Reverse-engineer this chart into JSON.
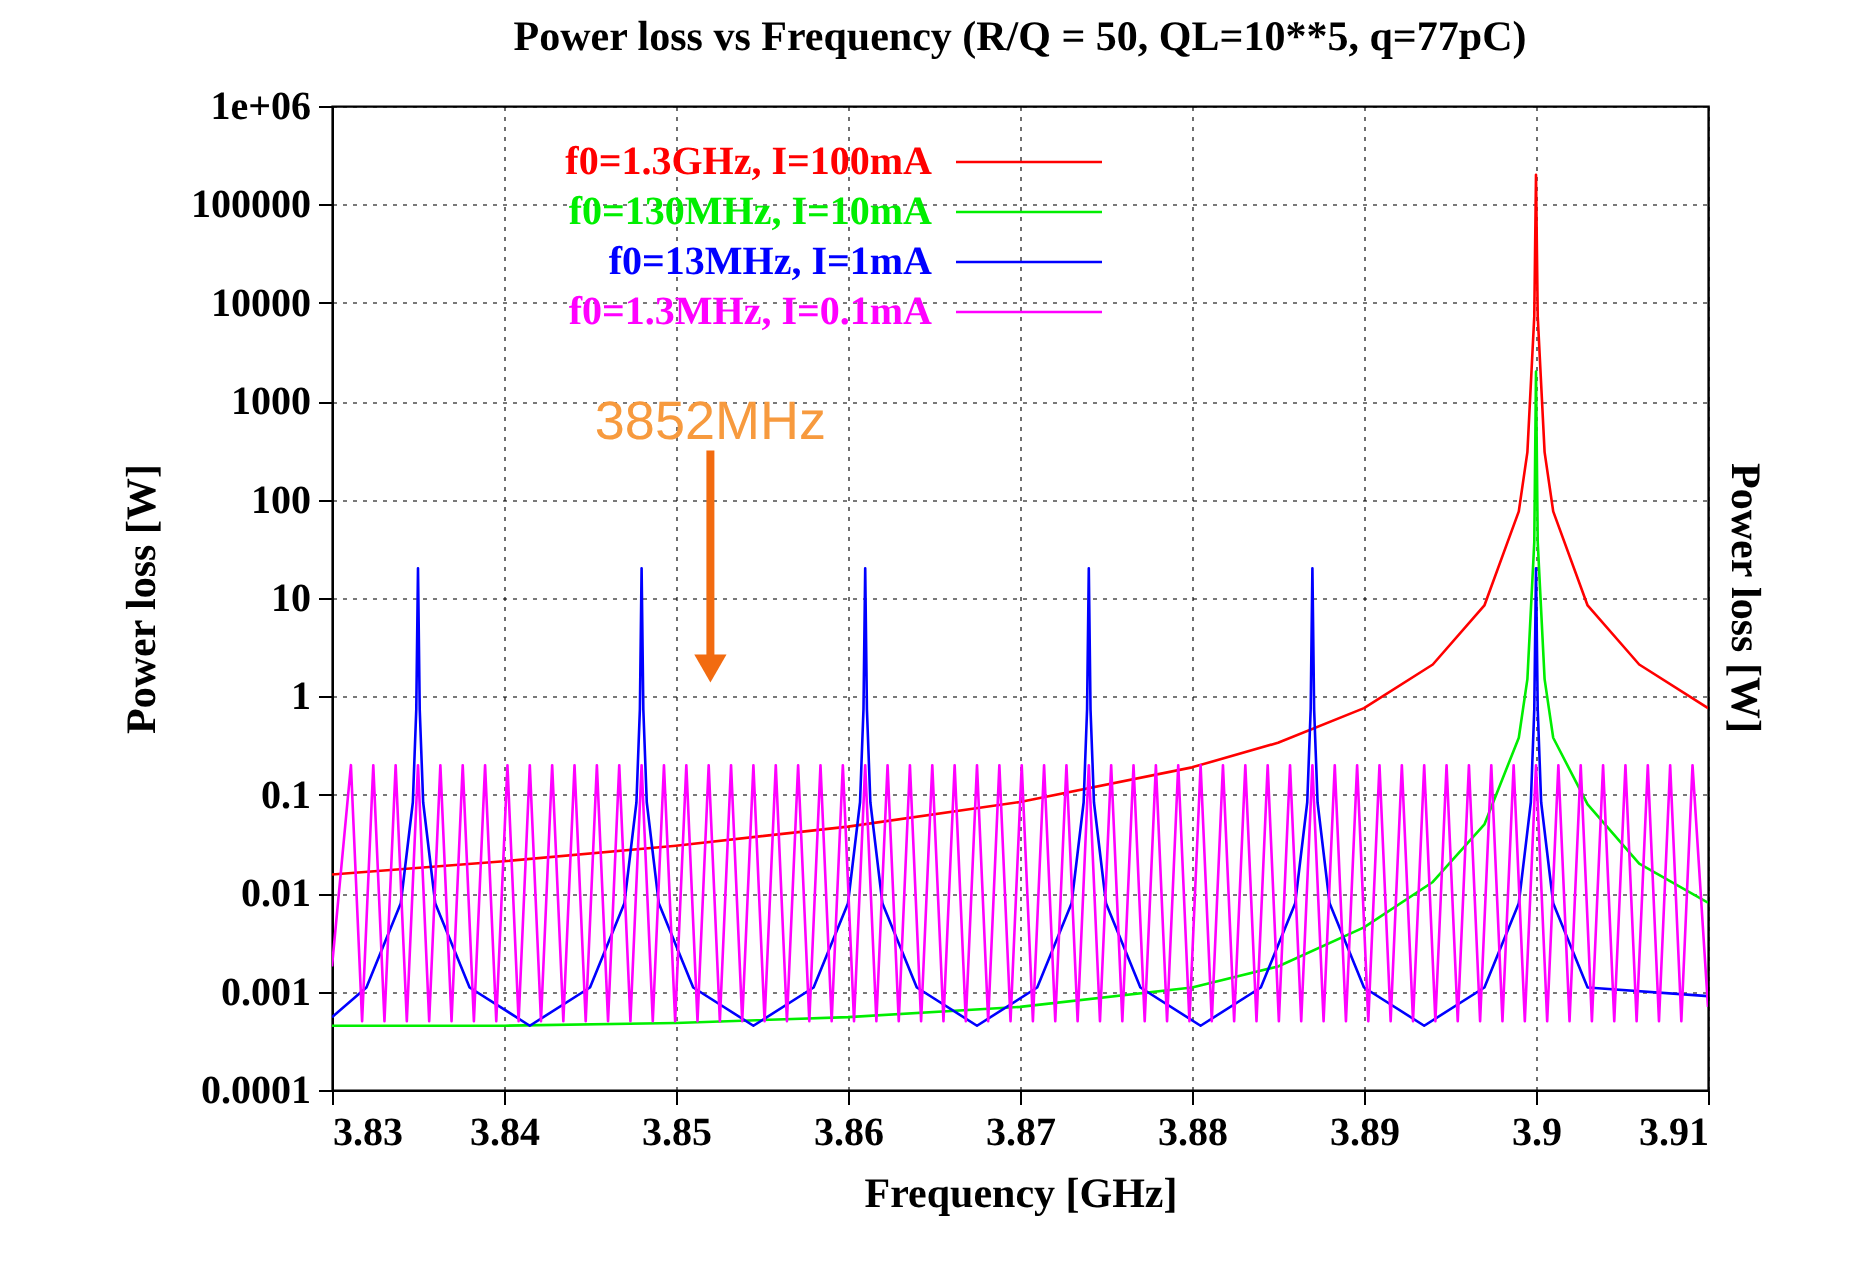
{
  "chart_data": {
    "type": "line",
    "title": "Power loss vs Frequency (R/Q = 50, QL=10**5, q=77pC)",
    "xlabel": "Frequency [GHz]",
    "ylabel": "Power loss [W]",
    "y2label": "Power loss [W]",
    "log": "y",
    "grid": true,
    "legend": "top left",
    "line_style": "solid",
    "marker": "none",
    "xlim": [
      3.83,
      3.91
    ],
    "xticks": [
      3.83,
      3.84,
      3.85,
      3.86,
      3.87,
      3.88,
      3.89,
      3.9,
      3.91
    ],
    "ylim": [
      0.0001,
      1000000
    ],
    "yticks": [
      0.0001,
      0.001,
      0.01,
      0.1,
      1,
      10,
      100,
      1000,
      10000,
      100000,
      {
        "value": 1000000,
        "label": "1e+06"
      }
    ],
    "annotations": [
      "3852MHz"
    ],
    "series": [
      {
        "name": "f0=1.3GHz, I=100mA",
        "color": "#ff0000",
        "x": [
          3.83,
          3.84,
          3.85,
          3.86,
          3.87,
          3.88,
          3.885,
          3.89,
          3.894,
          3.897,
          3.899,
          3.8995,
          3.8999,
          3.9,
          3.9001,
          3.9005,
          3.901,
          3.903,
          3.906,
          3.91
        ],
        "values": [
          0.0155,
          0.0211,
          0.0304,
          0.0475,
          0.0845,
          0.19,
          0.338,
          0.76,
          2.11,
          8.4,
          76,
          304,
          7300,
          200000,
          7300,
          304,
          76,
          8.4,
          2.11,
          0.76
        ]
      },
      {
        "name": "f0=130MHz, I=10mA",
        "color": "#00ee00",
        "x": [
          3.83,
          3.84,
          3.85,
          3.86,
          3.87,
          3.88,
          3.885,
          3.89,
          3.894,
          3.897,
          3.899,
          3.8995,
          3.8999,
          3.9,
          3.9001,
          3.9005,
          3.901,
          3.903,
          3.906,
          3.91
        ],
        "values": [
          0.00045,
          0.00045,
          0.00048,
          0.00055,
          0.0007,
          0.0011,
          0.0018,
          0.0045,
          0.013,
          0.05,
          0.38,
          1.5,
          37,
          2000,
          37,
          1.5,
          0.38,
          0.08,
          0.02,
          0.008
        ]
      },
      {
        "name": "f0=13MHz, I=1mA",
        "color": "#0000ff",
        "x": [
          3.83,
          3.832,
          3.834,
          3.8347,
          3.8349,
          3.835,
          3.8351,
          3.8353,
          3.836,
          3.838,
          3.8415,
          3.845,
          3.847,
          3.8477,
          3.8479,
          3.848,
          3.8481,
          3.8483,
          3.849,
          3.851,
          3.8545,
          3.858,
          3.86,
          3.8607,
          3.8609,
          3.861,
          3.8611,
          3.8613,
          3.862,
          3.864,
          3.8675,
          3.871,
          3.873,
          3.8737,
          3.8739,
          3.874,
          3.8741,
          3.8743,
          3.875,
          3.877,
          3.8805,
          3.884,
          3.886,
          3.8867,
          3.8869,
          3.887,
          3.8871,
          3.8873,
          3.888,
          3.89,
          3.8935,
          3.897,
          3.899,
          3.8997,
          3.8999,
          3.9,
          3.9001,
          3.9003,
          3.901,
          3.903,
          3.91
        ],
        "values": [
          0.00055,
          0.0011,
          0.0079,
          0.084,
          0.74,
          20,
          0.74,
          0.084,
          0.0079,
          0.0011,
          0.00045,
          0.0011,
          0.0079,
          0.084,
          0.74,
          20,
          0.74,
          0.084,
          0.0079,
          0.0011,
          0.00045,
          0.0011,
          0.0079,
          0.084,
          0.74,
          20,
          0.74,
          0.084,
          0.0079,
          0.0011,
          0.00045,
          0.0011,
          0.0079,
          0.084,
          0.74,
          20,
          0.74,
          0.084,
          0.0079,
          0.0011,
          0.00045,
          0.0011,
          0.0079,
          0.084,
          0.74,
          20,
          0.74,
          0.084,
          0.0079,
          0.0011,
          0.00045,
          0.0011,
          0.0079,
          0.084,
          0.74,
          20,
          0.74,
          0.084,
          0.0079,
          0.0011,
          0.0009
        ]
      },
      {
        "name": "f0=1.3MHz, I=0.1mA",
        "color": "#ff00ff",
        "x": [
          3.83,
          3.8311,
          3.83175,
          3.8324,
          3.83305,
          3.8337,
          3.83435,
          3.835,
          3.83565,
          3.8363,
          3.83695,
          3.8376,
          3.83825,
          3.8389,
          3.83955,
          3.8402,
          3.84085,
          3.8415,
          3.84215,
          3.8428,
          3.84345,
          3.8441,
          3.84475,
          3.8454,
          3.84605,
          3.8467,
          3.84735,
          3.848,
          3.84865,
          3.8493,
          3.84995,
          3.8506,
          3.85125,
          3.8519,
          3.85255,
          3.8532,
          3.85385,
          3.8545,
          3.85515,
          3.8558,
          3.85645,
          3.8571,
          3.85775,
          3.8584,
          3.85905,
          3.8597,
          3.86035,
          3.861,
          3.86165,
          3.8623,
          3.86295,
          3.8636,
          3.86425,
          3.8649,
          3.86555,
          3.8662,
          3.86685,
          3.8675,
          3.86815,
          3.8688,
          3.86945,
          3.8701,
          3.87075,
          3.8714,
          3.87205,
          3.8727,
          3.87335,
          3.874,
          3.87465,
          3.8753,
          3.87595,
          3.8766,
          3.87725,
          3.8779,
          3.87855,
          3.8792,
          3.87985,
          3.8805,
          3.88115,
          3.8818,
          3.88245,
          3.8831,
          3.88375,
          3.8844,
          3.88505,
          3.8857,
          3.88635,
          3.887,
          3.88765,
          3.8883,
          3.88895,
          3.8896,
          3.89025,
          3.8909,
          3.89155,
          3.8922,
          3.89285,
          3.8935,
          3.89415,
          3.8948,
          3.89545,
          3.8961,
          3.89675,
          3.8974,
          3.89805,
          3.8987,
          3.89935,
          3.9,
          3.90065,
          3.9013,
          3.90195,
          3.9026,
          3.90325,
          3.9039,
          3.90455,
          3.9052,
          3.90585,
          3.9065,
          3.90715,
          3.9078,
          3.90845,
          3.9091,
          3.91
        ],
        "values": [
          0.0018,
          0.2,
          0.0005,
          0.2,
          0.0005,
          0.2,
          0.0005,
          0.2,
          0.0005,
          0.2,
          0.0005,
          0.2,
          0.0005,
          0.2,
          0.0005,
          0.2,
          0.0005,
          0.2,
          0.0005,
          0.2,
          0.0005,
          0.2,
          0.0005,
          0.2,
          0.0005,
          0.2,
          0.0005,
          0.2,
          0.0005,
          0.2,
          0.0005,
          0.2,
          0.0005,
          0.2,
          0.0005,
          0.2,
          0.0005,
          0.2,
          0.0005,
          0.2,
          0.0005,
          0.2,
          0.0005,
          0.2,
          0.0005,
          0.2,
          0.0005,
          0.2,
          0.0005,
          0.2,
          0.0005,
          0.2,
          0.0005,
          0.2,
          0.0005,
          0.2,
          0.0005,
          0.2,
          0.0005,
          0.2,
          0.0005,
          0.2,
          0.0005,
          0.2,
          0.0005,
          0.2,
          0.0005,
          0.2,
          0.0005,
          0.2,
          0.0005,
          0.2,
          0.0005,
          0.2,
          0.0005,
          0.2,
          0.0005,
          0.2,
          0.0005,
          0.2,
          0.0005,
          0.2,
          0.0005,
          0.2,
          0.0005,
          0.2,
          0.0005,
          0.2,
          0.0005,
          0.2,
          0.0005,
          0.2,
          0.0005,
          0.2,
          0.0005,
          0.2,
          0.0005,
          0.2,
          0.0005,
          0.2,
          0.0005,
          0.2,
          0.0005,
          0.2,
          0.0005,
          0.2,
          0.0005,
          0.2,
          0.0005,
          0.2,
          0.0005,
          0.2,
          0.0005,
          0.2,
          0.0005,
          0.2,
          0.0005,
          0.2,
          0.0005,
          0.2,
          0.0005,
          0.2,
          0.0007
        ]
      }
    ]
  }
}
